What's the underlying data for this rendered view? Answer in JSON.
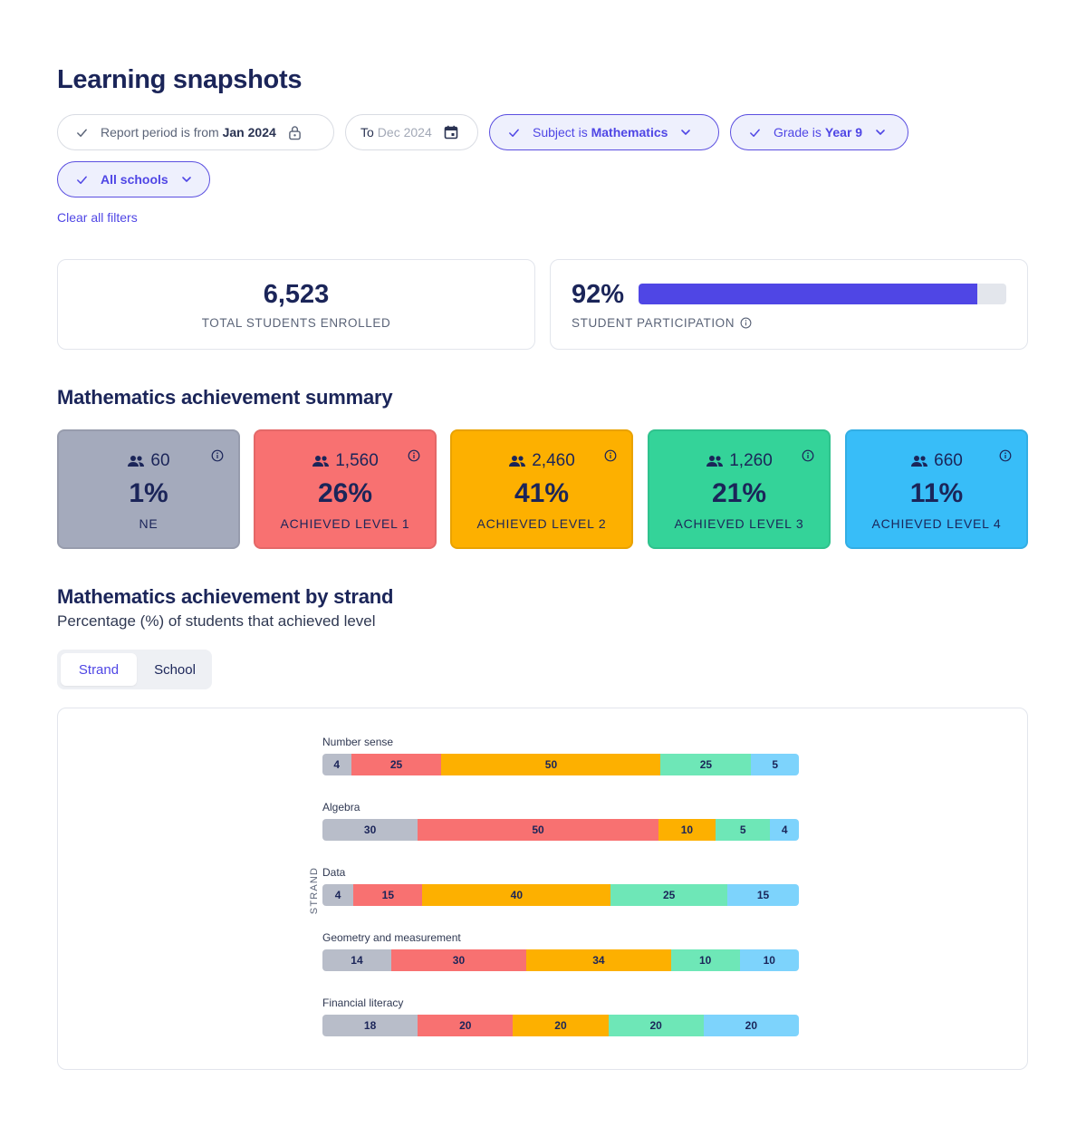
{
  "title": "Learning snapshots",
  "filters": {
    "period_from_prefix": "Report period is from",
    "period_from_value": "Jan 2024",
    "period_to_prefix": "To",
    "period_to_value": "Dec 2024",
    "subject_prefix": "Subject is",
    "subject_value": "Mathematics",
    "grade_prefix": "Grade is",
    "grade_value": "Year 9",
    "schools": "All schools",
    "clear_all": "Clear all filters"
  },
  "kpis": {
    "enrolled_value": "6,523",
    "enrolled_label": "TOTAL STUDENTS ENROLLED",
    "participation_value": "92%",
    "participation_fraction": 0.92,
    "participation_label": "STUDENT PARTICIPATION"
  },
  "summary": {
    "title": "Mathematics achievement summary",
    "cards": [
      {
        "count": "60",
        "pct": "1%",
        "label": "NE",
        "color": "#a4aabc"
      },
      {
        "count": "1,560",
        "pct": "26%",
        "label": "ACHIEVED LEVEL 1",
        "color": "#f87171"
      },
      {
        "count": "2,460",
        "pct": "41%",
        "label": "ACHIEVED LEVEL 2",
        "color": "#fdb000"
      },
      {
        "count": "1,260",
        "pct": "21%",
        "label": "ACHIEVED LEVEL 3",
        "color": "#34d399"
      },
      {
        "count": "660",
        "pct": "11%",
        "label": "ACHIEVED LEVEL 4",
        "color": "#38bdf8"
      }
    ]
  },
  "strand": {
    "title": "Mathematics achievement by strand",
    "subtitle": "Percentage (%) of students that achieved level",
    "tabs": [
      "Strand",
      "School"
    ],
    "active_tab": "Strand"
  },
  "chart_data": {
    "type": "bar",
    "orientation": "horizontal",
    "stacked": true,
    "ylabel": "STRAND",
    "categories": [
      "Number sense",
      "Algebra",
      "Data",
      "Geometry and measurement",
      "Financial literacy"
    ],
    "series_colors": [
      "#b8bdc9",
      "#f87171",
      "#fdb000",
      "#6ee7b7",
      "#7dd3fc"
    ],
    "series": [
      {
        "values": [
          4,
          30,
          4,
          14,
          18
        ]
      },
      {
        "values": [
          25,
          50,
          15,
          30,
          20
        ]
      },
      {
        "values": [
          50,
          10,
          40,
          34,
          20
        ]
      },
      {
        "values": [
          25,
          5,
          25,
          10,
          20
        ]
      },
      {
        "values": [
          5,
          4,
          15,
          10,
          20
        ]
      }
    ],
    "segment_widths_pct": [
      [
        6,
        19,
        46,
        19,
        10
      ],
      [
        20,
        50.5,
        12,
        11.5,
        6
      ],
      [
        6.5,
        14.5,
        39.5,
        24.5,
        15
      ],
      [
        14.5,
        28.5,
        30.5,
        14.5,
        12.5
      ],
      [
        20,
        20,
        20,
        20,
        20
      ]
    ]
  }
}
